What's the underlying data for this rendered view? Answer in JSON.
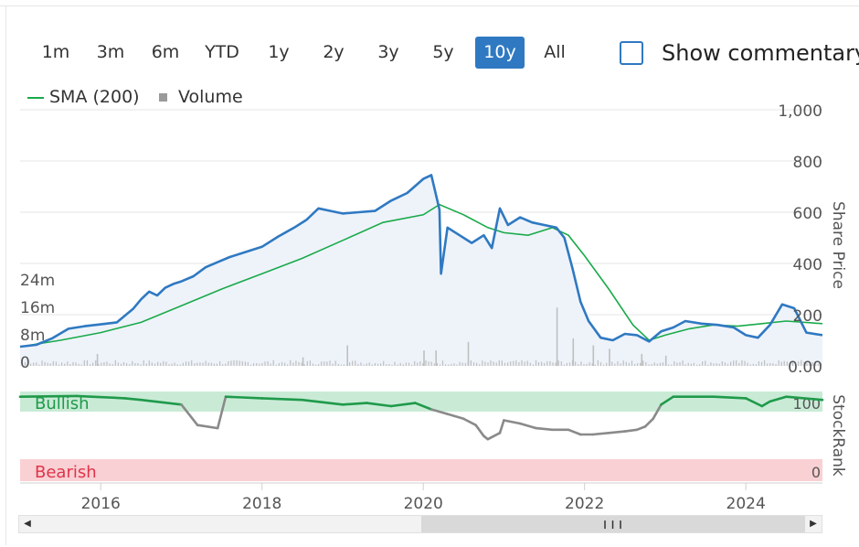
{
  "ranges": [
    {
      "label": "1m",
      "active": false
    },
    {
      "label": "3m",
      "active": false
    },
    {
      "label": "6m",
      "active": false
    },
    {
      "label": "YTD",
      "active": false
    },
    {
      "label": "1y",
      "active": false
    },
    {
      "label": "2y",
      "active": false
    },
    {
      "label": "3y",
      "active": false
    },
    {
      "label": "5y",
      "active": false
    },
    {
      "label": "10y",
      "active": true
    },
    {
      "label": "All",
      "active": false
    }
  ],
  "commentary": {
    "label": "Show commentary",
    "checked": false
  },
  "legend": {
    "sma_label": "SMA (200)",
    "volume_label": "Volume"
  },
  "colors": {
    "price": "#2f79c2",
    "sma": "#1aaa4a",
    "area": "#eef3fa",
    "volume": "#bfbfbf",
    "bullish_band": "#c9ebd6",
    "bearish_band": "#f9d0d3",
    "rank_bullish": "#1f9a4a",
    "rank_bearish": "#8a8a8a",
    "active_button": "#2f79c2",
    "bullish_text": "#1f9a4a",
    "bearish_text": "#e0334a"
  },
  "chart_data": {
    "type": "line",
    "x_range": [
      2015.0,
      2024.95
    ],
    "x_ticks": [
      {
        "value": 2016,
        "label": "2016"
      },
      {
        "value": 2018,
        "label": "2018"
      },
      {
        "value": 2020,
        "label": "2020"
      },
      {
        "value": 2022,
        "label": "2022"
      },
      {
        "value": 2024,
        "label": "2024"
      }
    ],
    "price_axis": {
      "label": "Share Price",
      "range": [
        0,
        1000
      ],
      "ticks": [
        {
          "value": 1000,
          "label": "1,000"
        },
        {
          "value": 800,
          "label": "800"
        },
        {
          "value": 600,
          "label": "600"
        },
        {
          "value": 400,
          "label": "400"
        },
        {
          "value": 200,
          "label": "200"
        },
        {
          "value": 0,
          "label": "0.00"
        }
      ]
    },
    "volume_axis": {
      "range": [
        0,
        32
      ],
      "ticks": [
        {
          "value": 24,
          "label": "24m"
        },
        {
          "value": 16,
          "label": "16m"
        },
        {
          "value": 8,
          "label": "8m"
        },
        {
          "value": 0,
          "label": "0"
        }
      ]
    },
    "series": [
      {
        "name": "Share Price",
        "x": [
          2015.0,
          2015.2,
          2015.4,
          2015.6,
          2015.8,
          2016.0,
          2016.2,
          2016.4,
          2016.5,
          2016.6,
          2016.7,
          2016.8,
          2016.9,
          2017.0,
          2017.15,
          2017.3,
          2017.45,
          2017.6,
          2017.8,
          2018.0,
          2018.2,
          2018.4,
          2018.55,
          2018.7,
          2018.85,
          2019.0,
          2019.2,
          2019.4,
          2019.6,
          2019.8,
          2020.0,
          2020.1,
          2020.2,
          2020.22,
          2020.3,
          2020.45,
          2020.6,
          2020.75,
          2020.85,
          2020.95,
          2021.05,
          2021.2,
          2021.35,
          2021.5,
          2021.65,
          2021.75,
          2021.85,
          2021.95,
          2022.05,
          2022.2,
          2022.35,
          2022.5,
          2022.65,
          2022.8,
          2022.95,
          2023.1,
          2023.25,
          2023.45,
          2023.65,
          2023.85,
          2024.0,
          2024.15,
          2024.3,
          2024.45,
          2024.6,
          2024.75,
          2024.95
        ],
        "values": [
          75,
          82,
          108,
          145,
          155,
          162,
          170,
          222,
          260,
          290,
          275,
          305,
          320,
          330,
          350,
          385,
          405,
          425,
          445,
          465,
          505,
          540,
          570,
          615,
          605,
          595,
          600,
          605,
          645,
          675,
          730,
          745,
          610,
          360,
          540,
          510,
          480,
          510,
          460,
          615,
          550,
          580,
          560,
          550,
          540,
          500,
          380,
          250,
          175,
          110,
          100,
          125,
          120,
          95,
          135,
          150,
          175,
          165,
          160,
          150,
          120,
          110,
          160,
          240,
          225,
          130,
          120
        ]
      },
      {
        "name": "SMA (200)",
        "x": [
          2015.0,
          2015.5,
          2016.0,
          2016.5,
          2017.0,
          2017.5,
          2018.0,
          2018.5,
          2019.0,
          2019.5,
          2020.0,
          2020.2,
          2020.5,
          2020.8,
          2021.0,
          2021.3,
          2021.6,
          2021.8,
          2022.0,
          2022.3,
          2022.6,
          2022.8,
          2023.0,
          2023.3,
          2023.6,
          2023.9,
          2024.2,
          2024.5,
          2024.95
        ],
        "values": [
          75,
          100,
          130,
          170,
          235,
          300,
          360,
          420,
          490,
          560,
          590,
          630,
          590,
          540,
          520,
          510,
          540,
          510,
          430,
          300,
          160,
          100,
          120,
          145,
          160,
          155,
          165,
          175,
          165
        ]
      }
    ],
    "volume_spikes": [
      {
        "x": 2021.65,
        "value": 17
      },
      {
        "x": 2021.85,
        "value": 8
      },
      {
        "x": 2020.55,
        "value": 7
      },
      {
        "x": 2019.05,
        "value": 6
      },
      {
        "x": 2022.3,
        "value": 5
      },
      {
        "x": 2020.0,
        "value": 4.5
      },
      {
        "x": 2015.95,
        "value": 3.5
      },
      {
        "x": 2022.7,
        "value": 3.5
      },
      {
        "x": 2023.0,
        "value": 3
      },
      {
        "x": 2018.5,
        "value": 2.5
      },
      {
        "x": 2020.15,
        "value": 4.5
      },
      {
        "x": 2022.1,
        "value": 6
      }
    ],
    "stockrank": {
      "label": "StockRank",
      "bullish_label": "Bullish",
      "bearish_label": "Bearish",
      "top_value_label": "100",
      "bottom_value_label": "0",
      "x": [
        2015.0,
        2015.7,
        2016.3,
        2016.5,
        2017.0,
        2017.2,
        2017.45,
        2017.55,
        2018.0,
        2018.5,
        2019.0,
        2019.3,
        2019.6,
        2019.9,
        2020.1,
        2020.3,
        2020.5,
        2020.65,
        2020.75,
        2020.8,
        2020.95,
        2021.0,
        2021.2,
        2021.4,
        2021.6,
        2021.8,
        2021.95,
        2022.1,
        2022.3,
        2022.5,
        2022.65,
        2022.75,
        2022.85,
        2022.95,
        2023.1,
        2023.6,
        2024.0,
        2024.2,
        2024.3,
        2024.5,
        2024.95
      ],
      "values": [
        98,
        99,
        96,
        94,
        88,
        62,
        58,
        98,
        96,
        94,
        88,
        90,
        86,
        90,
        82,
        76,
        70,
        62,
        48,
        44,
        52,
        68,
        64,
        58,
        56,
        56,
        50,
        50,
        52,
        54,
        56,
        60,
        70,
        88,
        98,
        98,
        96,
        86,
        92,
        98,
        94
      ]
    }
  }
}
